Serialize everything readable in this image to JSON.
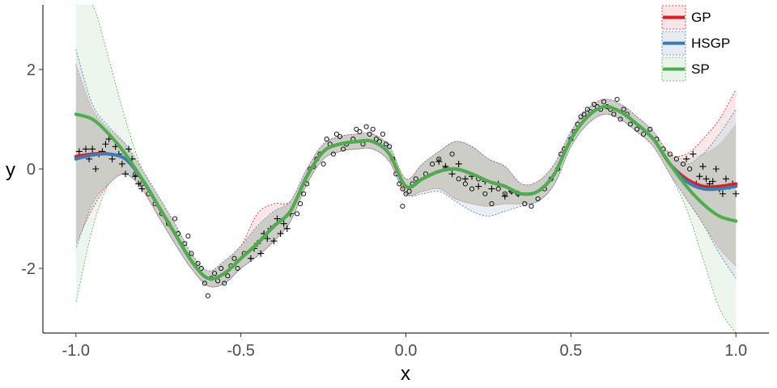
{
  "chart_data": {
    "type": "line",
    "xlabel": "x",
    "ylabel": "y",
    "xlim": [
      -1.1,
      1.1
    ],
    "ylim": [
      -3.3,
      3.3
    ],
    "x_ticks": [
      -1.0,
      -0.5,
      0.0,
      0.5,
      1.0
    ],
    "x_tick_labels": [
      "-1.0",
      "-0.5",
      "0.0",
      "0.5",
      "1.0"
    ],
    "y_ticks": [
      -2,
      0,
      2
    ],
    "y_tick_labels": [
      "-2",
      "0",
      "2"
    ],
    "grid": false,
    "legend_position": "top-right",
    "colors": {
      "GP": "#e41a1c",
      "HSGP": "#377eb8",
      "SP": "#4daf4a",
      "GP_fill": "#f4cccc",
      "HSGP_fill": "#cfd9e6",
      "SP_fill": "#d6ecd4",
      "overlap_fill": "#bdbdb5"
    },
    "series": [
      {
        "name": "GP",
        "x": [
          -1.0,
          -0.95,
          -0.9,
          -0.85,
          -0.8,
          -0.75,
          -0.7,
          -0.65,
          -0.6,
          -0.55,
          -0.5,
          -0.45,
          -0.4,
          -0.35,
          -0.3,
          -0.25,
          -0.2,
          -0.15,
          -0.1,
          -0.05,
          0.0,
          0.05,
          0.1,
          0.15,
          0.2,
          0.25,
          0.3,
          0.35,
          0.4,
          0.45,
          0.5,
          0.55,
          0.6,
          0.65,
          0.7,
          0.75,
          0.8,
          0.85,
          0.9,
          0.95,
          1.0
        ],
        "y": [
          0.25,
          0.3,
          0.3,
          0.2,
          -0.2,
          -0.75,
          -1.3,
          -1.85,
          -2.2,
          -2.1,
          -1.8,
          -1.5,
          -1.15,
          -0.85,
          -0.15,
          0.35,
          0.5,
          0.55,
          0.55,
          0.3,
          -0.35,
          -0.2,
          -0.05,
          0.0,
          -0.1,
          -0.25,
          -0.35,
          -0.5,
          -0.45,
          -0.1,
          0.6,
          1.05,
          1.25,
          1.15,
          0.9,
          0.6,
          0.1,
          -0.2,
          -0.35,
          -0.35,
          -0.3
        ],
        "lower": [
          -1.5,
          -0.8,
          -0.3,
          -0.1,
          -0.4,
          -0.95,
          -1.5,
          -2.0,
          -2.35,
          -2.3,
          -2.0,
          -1.75,
          -1.45,
          -1.05,
          -0.3,
          0.2,
          0.35,
          0.4,
          0.4,
          0.15,
          -0.5,
          -0.45,
          -0.4,
          -0.6,
          -0.7,
          -0.75,
          -0.7,
          -0.7,
          -0.65,
          -0.3,
          0.45,
          0.9,
          1.1,
          1.0,
          0.75,
          0.45,
          -0.1,
          -0.6,
          -1.1,
          -1.6,
          -1.95
        ],
        "upper": [
          2.1,
          1.2,
          0.8,
          0.5,
          0.0,
          -0.55,
          -1.1,
          -1.7,
          -2.05,
          -1.85,
          -1.55,
          -0.9,
          -0.7,
          -0.65,
          0.0,
          0.5,
          0.65,
          0.7,
          0.7,
          0.45,
          -0.2,
          0.1,
          0.35,
          0.55,
          0.45,
          0.2,
          0.05,
          -0.3,
          -0.25,
          0.1,
          0.75,
          1.2,
          1.4,
          1.3,
          1.05,
          0.75,
          0.3,
          0.3,
          0.6,
          1.0,
          1.6
        ]
      },
      {
        "name": "HSGP",
        "x": [
          -1.0,
          -0.95,
          -0.9,
          -0.85,
          -0.8,
          -0.75,
          -0.7,
          -0.65,
          -0.6,
          -0.55,
          -0.5,
          -0.45,
          -0.4,
          -0.35,
          -0.3,
          -0.25,
          -0.2,
          -0.15,
          -0.1,
          -0.05,
          0.0,
          0.05,
          0.1,
          0.15,
          0.2,
          0.25,
          0.3,
          0.35,
          0.4,
          0.45,
          0.5,
          0.55,
          0.6,
          0.65,
          0.7,
          0.75,
          0.8,
          0.85,
          0.9,
          0.95,
          1.0
        ],
        "y": [
          0.2,
          0.28,
          0.3,
          0.2,
          -0.2,
          -0.75,
          -1.3,
          -1.85,
          -2.2,
          -2.1,
          -1.8,
          -1.5,
          -1.15,
          -0.85,
          -0.15,
          0.35,
          0.5,
          0.55,
          0.55,
          0.3,
          -0.35,
          -0.2,
          -0.05,
          0.0,
          -0.1,
          -0.25,
          -0.35,
          -0.5,
          -0.45,
          -0.1,
          0.6,
          1.05,
          1.25,
          1.15,
          0.9,
          0.6,
          0.1,
          -0.25,
          -0.4,
          -0.4,
          -0.35
        ],
        "lower": [
          -1.6,
          -0.7,
          -0.3,
          -0.1,
          -0.4,
          -0.95,
          -1.5,
          -2.0,
          -2.35,
          -2.3,
          -2.0,
          -1.75,
          -1.45,
          -1.05,
          -0.3,
          0.2,
          0.35,
          0.4,
          0.4,
          0.15,
          -0.5,
          -0.5,
          -0.45,
          -0.65,
          -0.85,
          -0.95,
          -0.85,
          -0.75,
          -0.65,
          -0.3,
          0.45,
          0.9,
          1.1,
          1.0,
          0.75,
          0.45,
          -0.1,
          -0.6,
          -1.1,
          -1.7,
          -2.2
        ],
        "upper": [
          2.4,
          1.3,
          0.85,
          0.5,
          0.0,
          -0.55,
          -1.1,
          -1.7,
          -2.05,
          -1.85,
          -1.55,
          -1.15,
          -0.85,
          -0.65,
          0.0,
          0.5,
          0.65,
          0.7,
          0.7,
          0.45,
          -0.2,
          0.1,
          0.35,
          0.55,
          0.45,
          0.2,
          0.05,
          -0.3,
          -0.25,
          0.1,
          0.75,
          1.2,
          1.4,
          1.3,
          1.05,
          0.75,
          0.3,
          0.1,
          0.3,
          0.7,
          1.2
        ]
      },
      {
        "name": "SP",
        "x": [
          -1.0,
          -0.95,
          -0.9,
          -0.85,
          -0.8,
          -0.75,
          -0.7,
          -0.65,
          -0.6,
          -0.55,
          -0.5,
          -0.45,
          -0.4,
          -0.35,
          -0.3,
          -0.25,
          -0.2,
          -0.15,
          -0.1,
          -0.05,
          0.0,
          0.05,
          0.1,
          0.15,
          0.2,
          0.25,
          0.3,
          0.35,
          0.4,
          0.45,
          0.5,
          0.55,
          0.6,
          0.65,
          0.7,
          0.75,
          0.8,
          0.85,
          0.9,
          0.95,
          1.0
        ],
        "y": [
          1.1,
          1.0,
          0.7,
          0.3,
          -0.2,
          -0.75,
          -1.3,
          -1.85,
          -2.2,
          -2.1,
          -1.8,
          -1.5,
          -1.15,
          -0.85,
          -0.15,
          0.35,
          0.5,
          0.55,
          0.55,
          0.3,
          -0.35,
          -0.2,
          -0.05,
          0.0,
          -0.1,
          -0.25,
          -0.35,
          -0.5,
          -0.45,
          -0.1,
          0.6,
          1.05,
          1.25,
          1.15,
          0.9,
          0.6,
          0.1,
          -0.35,
          -0.7,
          -0.95,
          -1.05
        ],
        "lower": [
          -2.7,
          -1.2,
          -0.3,
          -0.1,
          -0.4,
          -0.95,
          -1.5,
          -2.0,
          -2.35,
          -2.3,
          -2.0,
          -1.75,
          -1.45,
          -1.05,
          -0.3,
          0.2,
          0.35,
          0.4,
          0.4,
          0.15,
          -0.5,
          -0.45,
          -0.4,
          -0.6,
          -0.7,
          -0.75,
          -0.7,
          -0.7,
          -0.65,
          -0.3,
          0.45,
          0.9,
          1.1,
          1.0,
          0.75,
          0.45,
          -0.1,
          -0.8,
          -1.8,
          -2.8,
          -3.3
        ],
        "upper": [
          3.3,
          3.3,
          2.2,
          1.0,
          0.0,
          -0.55,
          -1.1,
          -1.7,
          -2.05,
          -1.85,
          -1.55,
          -1.15,
          -0.85,
          -0.65,
          0.0,
          0.5,
          0.65,
          0.7,
          0.7,
          0.45,
          -0.2,
          0.1,
          0.35,
          0.55,
          0.45,
          0.2,
          0.05,
          -0.3,
          -0.25,
          0.1,
          0.75,
          1.2,
          1.4,
          1.3,
          1.05,
          0.75,
          0.3,
          0.2,
          0.3,
          0.5,
          0.9
        ]
      }
    ],
    "points_circle": [
      [
        -0.82,
        -0.1
      ],
      [
        -0.8,
        -0.3
      ],
      [
        -0.78,
        -0.5
      ],
      [
        -0.76,
        -0.7
      ],
      [
        -0.74,
        -0.9
      ],
      [
        -0.72,
        -1.1
      ],
      [
        -0.7,
        -1.0
      ],
      [
        -0.69,
        -1.3
      ],
      [
        -0.67,
        -1.5
      ],
      [
        -0.66,
        -1.35
      ],
      [
        -0.65,
        -1.7
      ],
      [
        -0.63,
        -1.9
      ],
      [
        -0.62,
        -2.0
      ],
      [
        -0.61,
        -2.3
      ],
      [
        -0.6,
        -2.55
      ],
      [
        -0.59,
        -2.2
      ],
      [
        -0.58,
        -2.1
      ],
      [
        -0.57,
        -2.25
      ],
      [
        -0.56,
        -2.0
      ],
      [
        -0.55,
        -2.3
      ],
      [
        -0.54,
        -2.15
      ],
      [
        -0.53,
        -1.95
      ],
      [
        -0.52,
        -1.8
      ],
      [
        -0.51,
        -2.0
      ],
      [
        -0.49,
        -1.7
      ],
      [
        -0.33,
        -0.9
      ],
      [
        -0.32,
        -0.7
      ],
      [
        -0.31,
        -0.5
      ],
      [
        -0.3,
        -0.3
      ],
      [
        -0.29,
        0.0
      ],
      [
        -0.28,
        0.05
      ],
      [
        -0.27,
        0.2
      ],
      [
        -0.26,
        0.3
      ],
      [
        -0.25,
        0.1
      ],
      [
        -0.24,
        0.6
      ],
      [
        -0.23,
        0.5
      ],
      [
        -0.22,
        0.3
      ],
      [
        -0.21,
        0.7
      ],
      [
        -0.2,
        0.65
      ],
      [
        -0.19,
        0.4
      ],
      [
        -0.18,
        0.5
      ],
      [
        -0.16,
        0.6
      ],
      [
        -0.15,
        0.8
      ],
      [
        -0.14,
        0.75
      ],
      [
        -0.13,
        0.5
      ],
      [
        -0.12,
        0.85
      ],
      [
        -0.11,
        0.7
      ],
      [
        -0.1,
        0.8
      ],
      [
        -0.09,
        0.6
      ],
      [
        -0.08,
        0.55
      ],
      [
        -0.07,
        0.7
      ],
      [
        -0.06,
        0.5
      ],
      [
        -0.05,
        0.45
      ],
      [
        -0.04,
        0.2
      ],
      [
        -0.03,
        -0.1
      ],
      [
        -0.02,
        -0.3
      ],
      [
        -0.01,
        -0.4
      ],
      [
        0.0,
        -0.5
      ],
      [
        0.01,
        -0.45
      ],
      [
        0.02,
        -0.3
      ],
      [
        0.03,
        -0.2
      ],
      [
        -0.01,
        -0.75
      ],
      [
        0.06,
        -0.1
      ],
      [
        0.08,
        0.1
      ],
      [
        0.1,
        0.2
      ],
      [
        0.12,
        0.0
      ],
      [
        0.14,
        0.3
      ],
      [
        0.16,
        -0.2
      ],
      [
        0.18,
        -0.3
      ],
      [
        0.2,
        -0.4
      ],
      [
        0.22,
        -0.2
      ],
      [
        0.24,
        -0.5
      ],
      [
        0.26,
        -0.7
      ],
      [
        0.28,
        -0.4
      ],
      [
        0.3,
        -0.5
      ],
      [
        0.32,
        -0.45
      ],
      [
        0.34,
        -0.5
      ],
      [
        0.36,
        -0.7
      ],
      [
        0.38,
        -0.75
      ],
      [
        0.4,
        -0.6
      ],
      [
        0.42,
        -0.4
      ],
      [
        0.44,
        -0.2
      ],
      [
        0.46,
        0.0
      ],
      [
        0.47,
        0.3
      ],
      [
        0.48,
        0.4
      ],
      [
        0.5,
        0.6
      ],
      [
        0.51,
        0.75
      ],
      [
        0.52,
        0.9
      ],
      [
        0.53,
        1.05
      ],
      [
        0.54,
        1.1
      ],
      [
        0.55,
        1.2
      ],
      [
        0.56,
        1.15
      ],
      [
        0.57,
        1.3
      ],
      [
        0.58,
        1.25
      ],
      [
        0.59,
        1.2
      ],
      [
        0.6,
        1.35
      ],
      [
        0.61,
        1.25
      ],
      [
        0.62,
        1.2
      ],
      [
        0.63,
        1.1
      ],
      [
        0.64,
        1.4
      ],
      [
        0.65,
        1.0
      ],
      [
        0.66,
        1.2
      ],
      [
        0.67,
        1.1
      ],
      [
        0.68,
        0.9
      ],
      [
        0.7,
        0.8
      ],
      [
        0.72,
        0.7
      ],
      [
        0.74,
        0.8
      ],
      [
        0.76,
        0.6
      ],
      [
        0.78,
        0.4
      ],
      [
        0.8,
        0.3
      ],
      [
        0.82,
        0.2
      ],
      [
        0.84,
        0.1
      ],
      [
        0.86,
        0.0
      ]
    ],
    "points_plus": [
      [
        -0.99,
        0.35
      ],
      [
        -0.97,
        0.4
      ],
      [
        -0.96,
        0.2
      ],
      [
        -0.95,
        0.4
      ],
      [
        -0.94,
        0.0
      ],
      [
        -0.93,
        0.3
      ],
      [
        -0.92,
        0.35
      ],
      [
        -0.91,
        0.5
      ],
      [
        -0.9,
        0.6
      ],
      [
        -0.89,
        0.2
      ],
      [
        -0.88,
        0.45
      ],
      [
        -0.87,
        0.3
      ],
      [
        -0.86,
        0.1
      ],
      [
        -0.85,
        -0.1
      ],
      [
        -0.84,
        0.4
      ],
      [
        -0.83,
        0.2
      ],
      [
        -0.82,
        -0.15
      ],
      [
        -0.81,
        -0.3
      ],
      [
        -0.8,
        -0.4
      ],
      [
        -0.47,
        -1.8
      ],
      [
        -0.46,
        -1.6
      ],
      [
        -0.45,
        -1.5
      ],
      [
        -0.44,
        -1.7
      ],
      [
        -0.43,
        -1.3
      ],
      [
        -0.42,
        -1.4
      ],
      [
        -0.41,
        -1.2
      ],
      [
        -0.4,
        -1.45
      ],
      [
        -0.39,
        -1.0
      ],
      [
        -0.38,
        -1.3
      ],
      [
        -0.37,
        -1.1
      ],
      [
        -0.36,
        -1.2
      ],
      [
        -0.35,
        -0.9
      ],
      [
        0.1,
        0.15
      ],
      [
        0.12,
        0.05
      ],
      [
        0.14,
        -0.1
      ],
      [
        0.16,
        0.1
      ],
      [
        0.18,
        -0.2
      ],
      [
        0.2,
        -0.15
      ],
      [
        0.22,
        -0.35
      ],
      [
        0.24,
        -0.25
      ],
      [
        0.26,
        -0.4
      ],
      [
        0.28,
        -0.3
      ],
      [
        0.3,
        -0.55
      ],
      [
        0.32,
        -0.45
      ],
      [
        0.34,
        -0.5
      ],
      [
        0.85,
        0.2
      ],
      [
        0.87,
        0.3
      ],
      [
        0.88,
        -0.3
      ],
      [
        0.89,
        -0.15
      ],
      [
        0.9,
        0.05
      ],
      [
        0.91,
        -0.2
      ],
      [
        0.92,
        -0.3
      ],
      [
        0.93,
        -0.25
      ],
      [
        0.94,
        0.0
      ],
      [
        0.95,
        -0.4
      ],
      [
        0.96,
        -0.5
      ],
      [
        0.97,
        -0.2
      ],
      [
        0.98,
        -0.35
      ],
      [
        0.99,
        -0.3
      ],
      [
        1.0,
        -0.5
      ]
    ]
  }
}
